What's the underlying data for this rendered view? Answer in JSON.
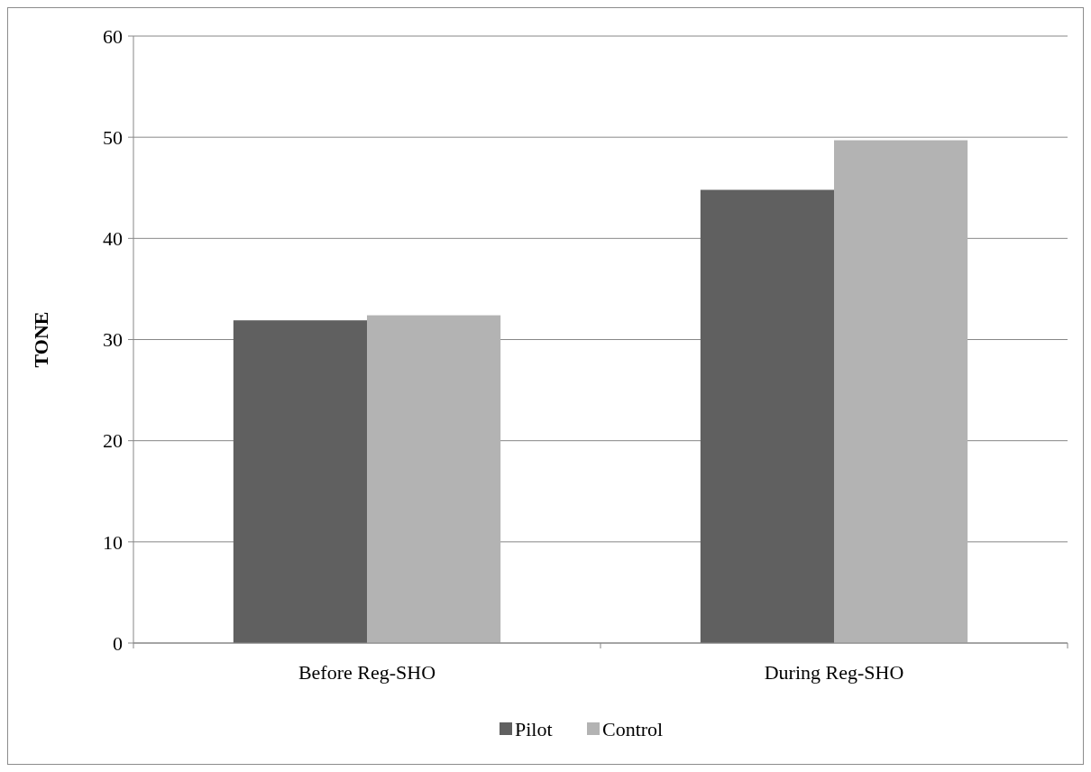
{
  "chart_data": {
    "type": "bar",
    "ylabel": "TONE",
    "categories": [
      "Before Reg-SHO",
      "During Reg-SHO"
    ],
    "series": [
      {
        "name": "Pilot",
        "color": "#606060",
        "values": [
          31.9,
          44.8
        ]
      },
      {
        "name": "Control",
        "color": "#b3b3b3",
        "values": [
          32.4,
          49.7
        ]
      }
    ],
    "ylim": [
      0,
      60
    ],
    "yticks": [
      0,
      10,
      20,
      30,
      40,
      50,
      60
    ],
    "grid": "y",
    "legend": "bottom"
  }
}
